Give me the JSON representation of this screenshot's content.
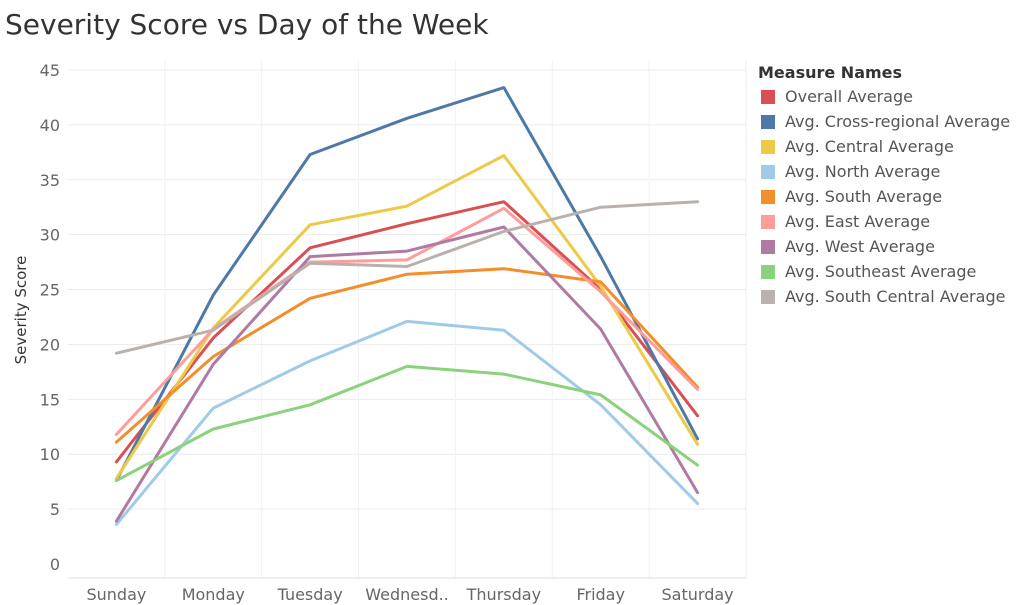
{
  "chart_data": {
    "type": "line",
    "title": "Severity Score vs Day of the Week",
    "xlabel": "",
    "ylabel": "Severity Score",
    "categories": [
      "Sunday",
      "Monday",
      "Tuesday",
      "Wednesd..",
      "Thursday",
      "Friday",
      "Saturday"
    ],
    "yticks": [
      0,
      5,
      10,
      15,
      20,
      25,
      30,
      35,
      40,
      45
    ],
    "ylim": [
      0,
      45
    ],
    "grid": true,
    "legend_title": "Measure Names",
    "legend_position": "right",
    "series": [
      {
        "name": "Overall Average",
        "color": "#d94f54",
        "values": [
          9.3,
          20.6,
          28.8,
          31.0,
          33.0,
          25.0,
          13.5
        ]
      },
      {
        "name": "Avg. Cross-regional Average",
        "color": "#4e79a7",
        "values": [
          7.6,
          24.5,
          37.3,
          40.6,
          43.4,
          28.0,
          11.4
        ]
      },
      {
        "name": "Avg. Central Average",
        "color": "#edc948",
        "values": [
          7.8,
          21.5,
          30.9,
          32.6,
          37.2,
          25.3,
          10.9
        ]
      },
      {
        "name": "Avg. North Average",
        "color": "#a0cbe8",
        "values": [
          3.6,
          14.2,
          18.5,
          22.1,
          21.3,
          14.5,
          5.5
        ]
      },
      {
        "name": "Avg. South Average",
        "color": "#f28e2b",
        "values": [
          11.1,
          18.9,
          24.2,
          26.4,
          26.9,
          25.7,
          16.1
        ]
      },
      {
        "name": "Avg. East Average",
        "color": "#ff9d9a",
        "values": [
          11.8,
          21.4,
          27.5,
          27.7,
          32.4,
          24.8,
          15.9
        ]
      },
      {
        "name": "Avg. West Average",
        "color": "#b07aa1",
        "values": [
          3.9,
          18.2,
          28.0,
          28.5,
          30.7,
          21.4,
          6.5
        ]
      },
      {
        "name": "Avg. Southeast Average",
        "color": "#8cd17d",
        "values": [
          7.6,
          12.3,
          14.5,
          18.0,
          17.3,
          15.4,
          9.0
        ]
      },
      {
        "name": "Avg. South Central Average",
        "color": "#bab0ac",
        "values": [
          19.2,
          21.3,
          27.4,
          27.1,
          30.3,
          32.5,
          33.0
        ]
      }
    ]
  }
}
